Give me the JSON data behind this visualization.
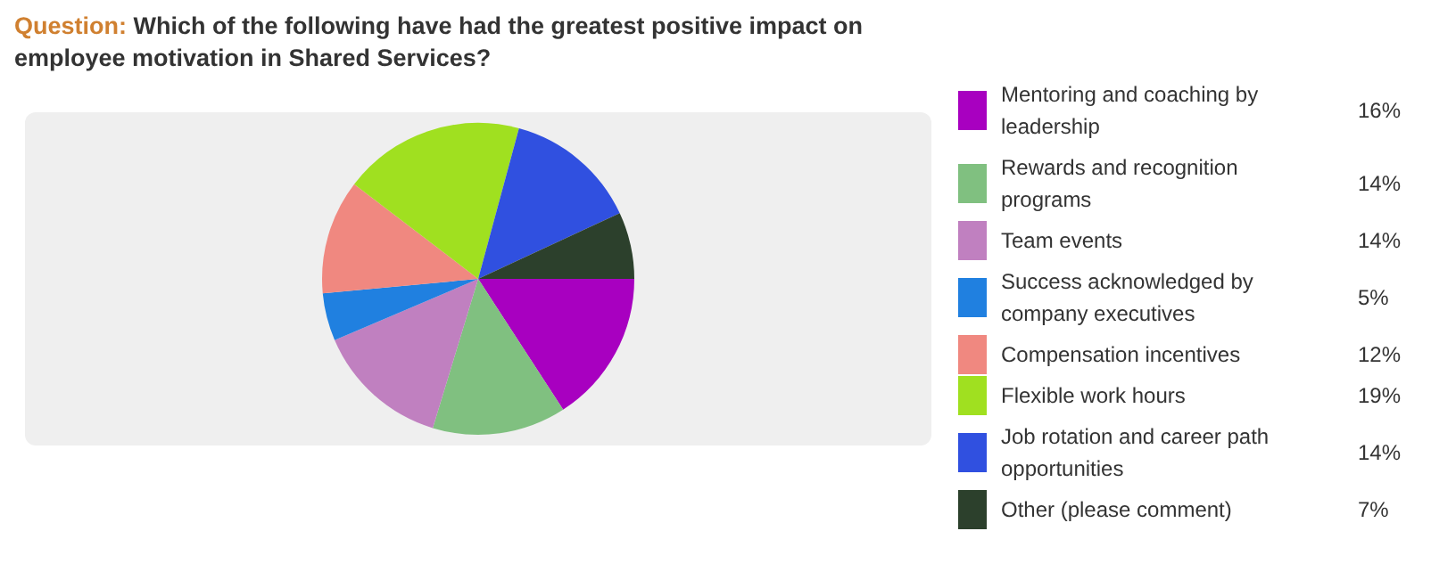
{
  "chart_data": {
    "type": "pie",
    "title": "Question: Which of the following have had the greatest positive impact on employee motivation in Shared Services?",
    "categories": [
      "Mentoring and coaching by leadership",
      "Rewards and recognition programs",
      "Team events",
      "Success acknowledged by company executives",
      "Compensation incentives",
      "Flexible work hours",
      "Job rotation and career path opportunities",
      "Other (please comment)"
    ],
    "values": [
      16,
      14,
      14,
      5,
      12,
      19,
      14,
      7
    ],
    "value_labels": [
      "16%",
      "14%",
      "14%",
      "5%",
      "12%",
      "19%",
      "14%",
      "7%"
    ],
    "colors": [
      "#a800c0",
      "#80c080",
      "#c080c0",
      "#2080e0",
      "#f08880",
      "#a0e020",
      "#3050e0",
      "#2c402c"
    ],
    "legend": "right"
  }
}
